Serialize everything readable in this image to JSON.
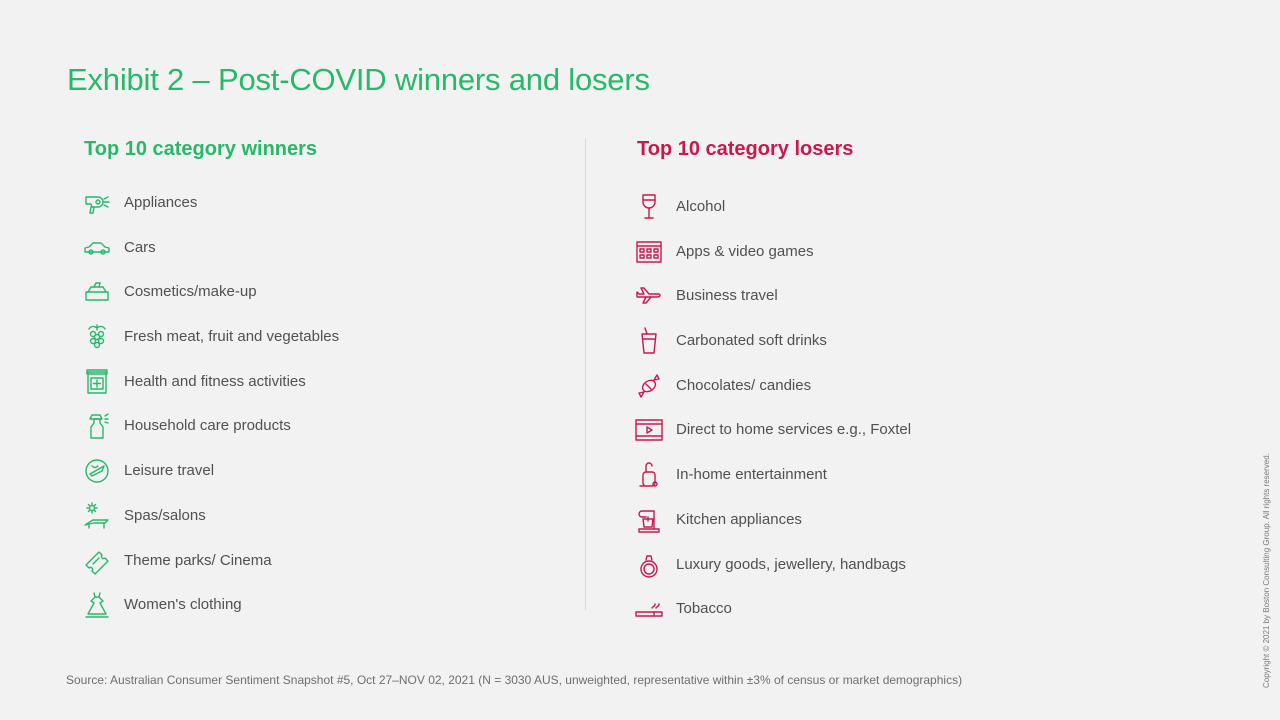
{
  "title": "Exhibit 2 – Post-COVID  winners and losers",
  "winners": {
    "heading": "Top 10 category winners",
    "color": "#29b86a",
    "items": [
      {
        "label": "Appliances",
        "icon": "hair-dryer-icon"
      },
      {
        "label": "Cars",
        "icon": "car-icon"
      },
      {
        "label": "Cosmetics/make-up",
        "icon": "makeup-palette-icon"
      },
      {
        "label": "Fresh  meat,  fruit  and  vegetables",
        "icon": "grapes-icon"
      },
      {
        "label": "Health  and  fitness  activities",
        "icon": "medical-kit-icon"
      },
      {
        "label": "Household  care  products",
        "icon": "spray-bottle-icon"
      },
      {
        "label": "Leisure  travel",
        "icon": "globe-plane-icon"
      },
      {
        "label": "Spas/salons",
        "icon": "sun-lounger-icon"
      },
      {
        "label": "Theme  parks/  Cinema",
        "icon": "ticket-icon"
      },
      {
        "label": "Women's  clothing",
        "icon": "dress-icon"
      }
    ]
  },
  "losers": {
    "heading": "Top 10 category losers",
    "color": "#c8194d",
    "items": [
      {
        "label": "Alcohol",
        "icon": "wine-glass-icon"
      },
      {
        "label": "Apps  &  video  games",
        "icon": "app-grid-icon"
      },
      {
        "label": "Business  travel",
        "icon": "airplane-icon"
      },
      {
        "label": "Carbonated  soft  drinks",
        "icon": "soda-cup-icon"
      },
      {
        "label": "Chocolates/  candies",
        "icon": "candy-icon"
      },
      {
        "label": "Direct  to  home  services  e.g.,  Foxtel",
        "icon": "video-player-icon"
      },
      {
        "label": "In-home  entertainment",
        "icon": "vacuum-cleaner-icon"
      },
      {
        "label": "Kitchen  appliances",
        "icon": "stand-mixer-icon"
      },
      {
        "label": "Luxury  goods, jewellery,  handbags",
        "icon": "diamond-ring-icon"
      },
      {
        "label": "Tobacco",
        "icon": "cigarette-icon"
      }
    ]
  },
  "source": "Source:  Australian  Consumer  Sentiment  Snapshot  #5,  Oct  27–NOV  02,  2021  (N  =  3030  AUS,  unweighted,   representative  within  ±3%  of  census  or  market  demographics)",
  "copyright": "Copyright © 2021 by Boston Consulting Group. All rights reserved."
}
